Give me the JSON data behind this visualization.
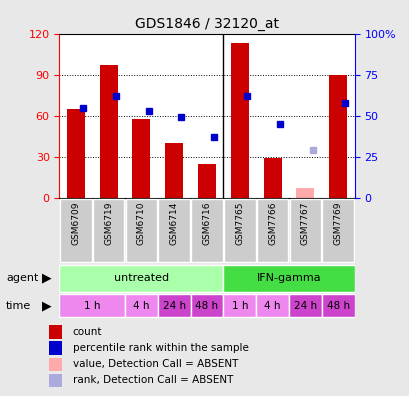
{
  "title": "GDS1846 / 32120_at",
  "samples": [
    "GSM6709",
    "GSM6719",
    "GSM6710",
    "GSM6714",
    "GSM6716",
    "GSM7765",
    "GSM7766",
    "GSM7767",
    "GSM7769"
  ],
  "bar_values": [
    65,
    97,
    58,
    40,
    25,
    113,
    29,
    7,
    90
  ],
  "bar_absent": [
    false,
    false,
    false,
    false,
    false,
    false,
    false,
    true,
    false
  ],
  "percentile_values": [
    55,
    62,
    53,
    49,
    37,
    62,
    45,
    29,
    58
  ],
  "percentile_absent": [
    false,
    false,
    false,
    false,
    false,
    false,
    false,
    true,
    false
  ],
  "bar_color": "#cc0000",
  "bar_absent_color": "#ffaaaa",
  "dot_color": "#0000cc",
  "dot_absent_color": "#aaaadd",
  "ylim_left": [
    0,
    120
  ],
  "ylim_right": [
    0,
    100
  ],
  "yticks_left": [
    0,
    30,
    60,
    90,
    120
  ],
  "yticks_right": [
    0,
    25,
    50,
    75,
    100
  ],
  "ytick_labels_left": [
    "0",
    "30",
    "60",
    "90",
    "120"
  ],
  "ytick_labels_right": [
    "0",
    "25",
    "50",
    "75",
    "100%"
  ],
  "agent_labels": [
    "untreated",
    "IFN-gamma"
  ],
  "agent_color_light": "#aaffaa",
  "agent_color_dark": "#44dd44",
  "time_color_light": "#ee88ee",
  "time_color_dark": "#cc44cc",
  "sample_bg": "#cccccc",
  "bg_color": "#e8e8e8",
  "plot_bg": "#ffffff",
  "legend_items": [
    {
      "label": "count",
      "color": "#cc0000"
    },
    {
      "label": "percentile rank within the sample",
      "color": "#0000cc"
    },
    {
      "label": "value, Detection Call = ABSENT",
      "color": "#ffaaaa"
    },
    {
      "label": "rank, Detection Call = ABSENT",
      "color": "#aaaadd"
    }
  ]
}
